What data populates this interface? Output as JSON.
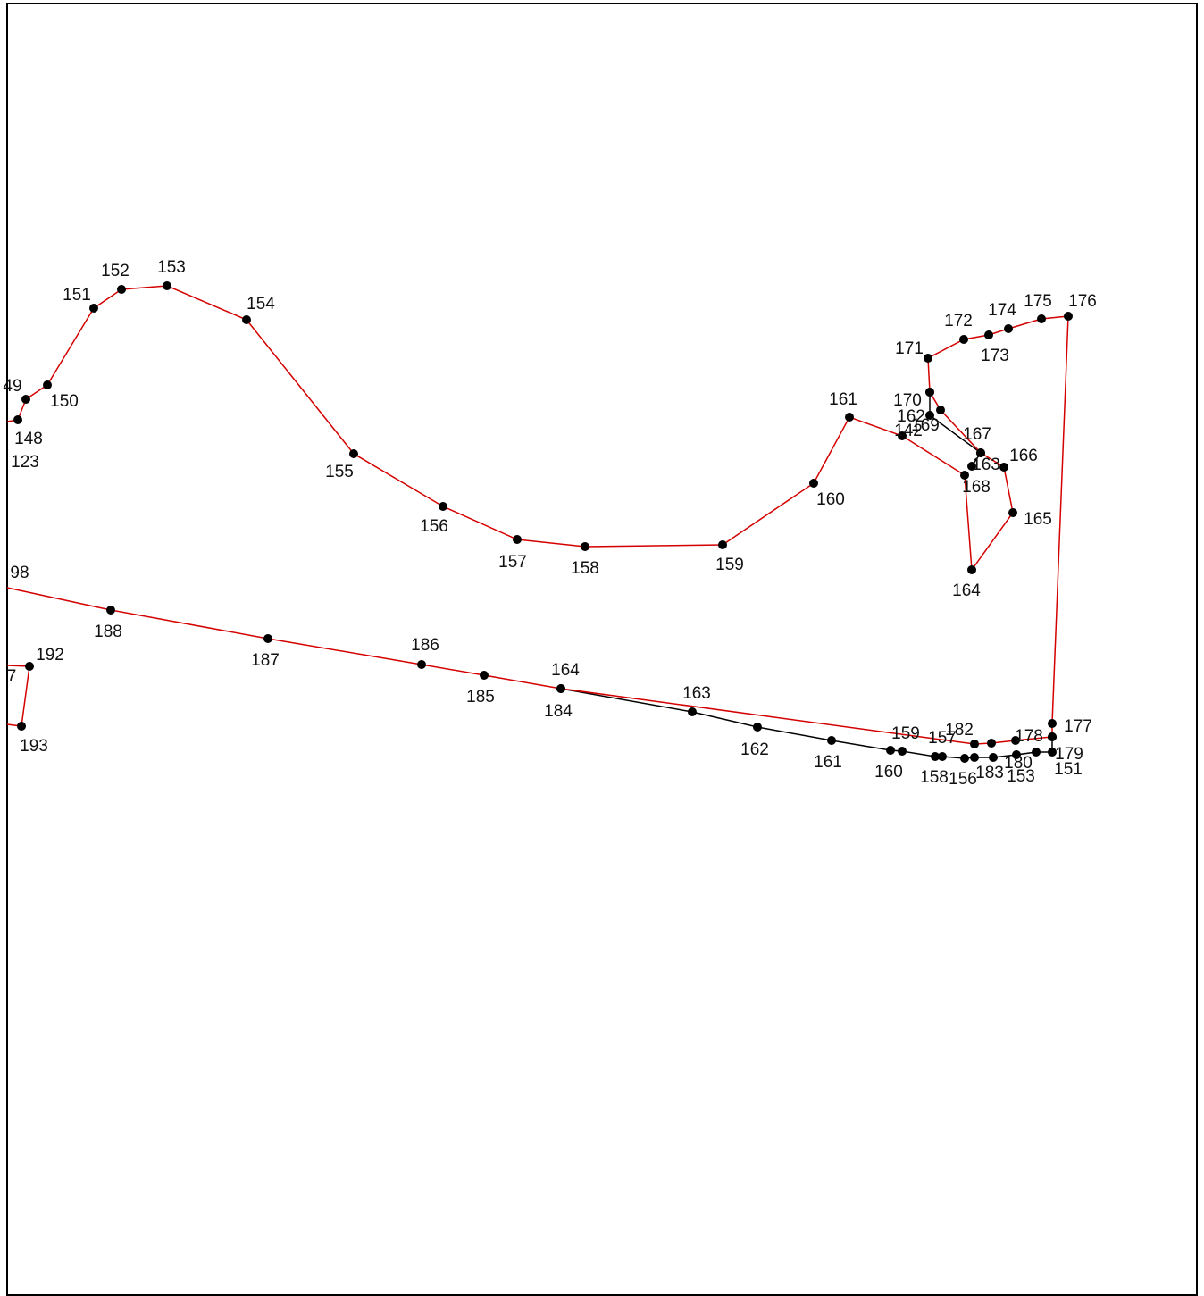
{
  "labels": [
    "49",
    "150",
    "151",
    "152",
    "153",
    "154",
    "155",
    "156",
    "157",
    "158",
    "159",
    "160",
    "161",
    "142",
    "169",
    "162",
    "170",
    "167",
    "166",
    "163",
    "168",
    "165",
    "164",
    "171",
    "172",
    "173",
    "174",
    "175",
    "176",
    "98",
    "188",
    "187",
    "186",
    "185",
    "184",
    "164",
    "163",
    "162",
    "161",
    "160",
    "159",
    "157",
    "182",
    "178",
    "177",
    "179",
    "151",
    "158",
    "156",
    "183",
    "180",
    "153",
    "192",
    "193",
    "7",
    "148",
    "123"
  ]
}
